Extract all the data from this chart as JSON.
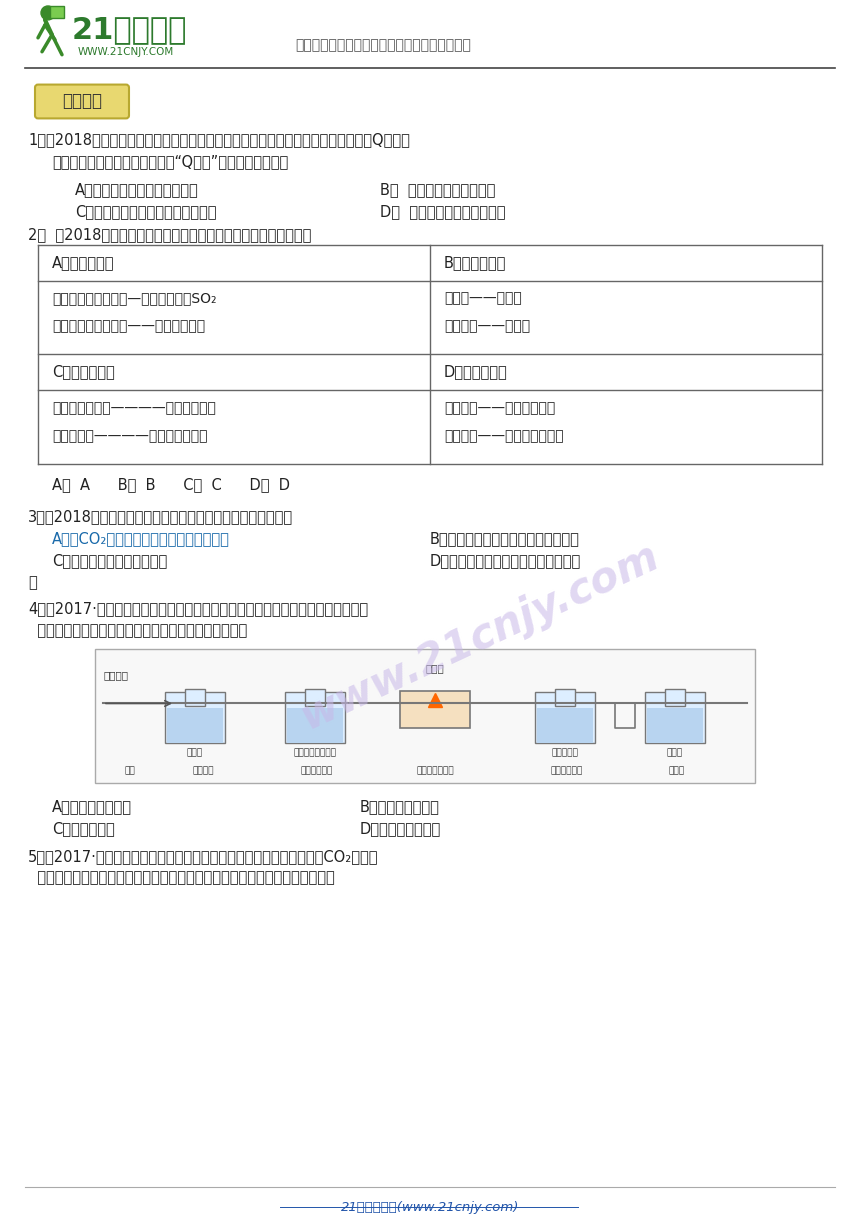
{
  "bg_color": "#ffffff",
  "header_line_color": "#333333",
  "logo_text": "21世纪教育",
  "logo_url": "WWW.21CNJY.COM",
  "header_subtitle": "中国最大型、最专业的中小学教育资源门户网站",
  "section_label": "名校预测",
  "section_label_bg": "#e8d870",
  "section_label_border": "#b8a830",
  "section_label_text_color": "#333333",
  "watermark_text": "www.21cnjy.com",
  "watermark_color": "#c8b8e8",
  "footer_text": "21世纪教育网(www.21cnjy.com)",
  "footer_color": "#2255aa",
  "table_border_color": "#666666",
  "body_text_color": "#222222",
  "q1_text": "1．（2018广东佛山质检）最近科学家发现，无定形碳在利用单脉冲激光冲激下生成Q－碳，",
  "q1_text2": "硬度比钓石还高。下列关于这种“Q－碳”的说法不正确的是",
  "q1_a": "A．化学性质与普通碳单质相同",
  "q1_b": "B．  常温下化学性质很活泼",
  "q1_c": "C．碳原子的排列方式不同于金冈石",
  "q1_d": "D．  碳原子价然在不断地运动",
  "q2_text": "2．  （2018广东佛山质检）下列知识整理的内容完全正确的一组是",
  "q2_ans": "A．  A      B．  B      C．  C      D．  D",
  "q3_text": "3．（2018湖北襄阳检测）下列各组物质鉴别方法不正确的是：",
  "q3_a": "A．用CO₂区分氢氧化销溶液和澄清石灰水",
  "q3_b": "B．用稀硫酸区分木炭粉和氧化铜粉末",
  "q3_c": "C．用熟石灰鉴别铵盐和鯨肖",
  "q3_d": "D．用酔酮溶液区分氯化销溶液和稀盐",
  "q3_d2": "酸",
  "q4_text": "4．（2017·江苏苏州模拟）某混合气体可能含有一氧化碳、二氧化碳、氢气、氯化",
  "q4_text2": "  氢中的一种或几种。进行如下实验，下列推断正确的是",
  "q4_a": "A．一定无二氧化碳",
  "q4_b": "B．可能含有氯化氢",
  "q4_c": "C．一定有氢气",
  "q4_d": "D．一定有一氧化碳",
  "q5_text": "5．（2017·江苏扬州月考）向盛有饱和和澄清石灰水的烧杯中持续通入CO₂出现了",
  "q5_text2": "  异常现象（先变浑浊后又变澄清），兴趣小组同学利用数字分析仪进行研究，",
  "diag_labels": [
    "石灰水",
    "足量氢氧化销溶液",
    "无水硫酸铜",
    "石灰水"
  ],
  "diag_top_label": "氧化锐",
  "diag_inlet": "混合气体",
  "diag_phenomena": [
    "现象",
    "不变浑浊",
    "气体体积减小",
    "黑色固体变红色",
    "白色固体变蓝",
    "变浑浊"
  ],
  "table_cells": {
    "A_header": "A．化学与环境",
    "B_header": "B．物质与俗名",
    "A_content1": "形成酸雨的罪魁祝首—氮的氧化物和SO₂",
    "A_content2": "二氧化碳的过量排放——温室效应加剧",
    "B_content1": "氧化钒——生石灰",
    "B_content2": "氢氧化销——小苏打",
    "C_header": "C．性质与用途",
    "D_header": "D．食品与安全",
    "C_content1": "煤炉取暖防中毒————炉上放一壶水",
    "C_content2": "防菜刀生锈————洗净擦干后悬挂",
    "D_content1": "亚礴酸销——不能当食盐用",
    "D_content2": "甲醉溶液——可作食品保鲜剂"
  }
}
